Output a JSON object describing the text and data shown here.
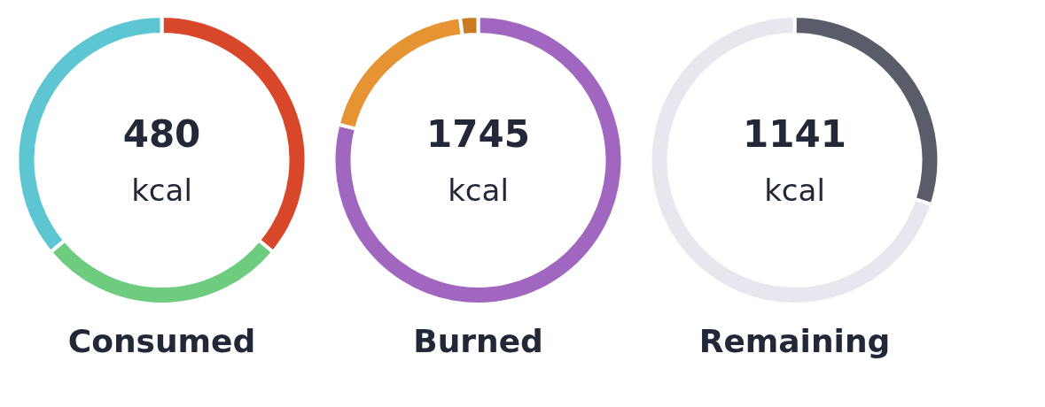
{
  "chart_data": [
    {
      "type": "donut",
      "title": "Consumed",
      "annotations": [
        "480",
        "kcal"
      ],
      "categories": [
        null,
        null,
        null
      ],
      "values": [
        36,
        28,
        36
      ],
      "colors": [
        "#d9472b",
        "#6dcc7e",
        "#5ec6d3"
      ],
      "legend": false
    },
    {
      "type": "donut",
      "title": "Burned",
      "annotations": [
        "1745",
        "kcal"
      ],
      "categories": [
        null,
        null,
        null
      ],
      "values": [
        79,
        19,
        2
      ],
      "colors": [
        "#a066c0",
        "#e69433",
        "#c97a22"
      ],
      "legend": false
    },
    {
      "type": "donut",
      "title": "Remaining",
      "annotations": [
        "1141",
        "kcal"
      ],
      "categories": [
        null,
        null
      ],
      "values": [
        30,
        70
      ],
      "colors": [
        "#5a5c6a",
        "#e6e7ef"
      ],
      "legend": false
    }
  ]
}
